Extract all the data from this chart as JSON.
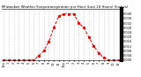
{
  "title": "Milwaukee Weather Evapotranspiration per Hour (Last 24 Hours) (Inches)",
  "hours": [
    0,
    1,
    2,
    3,
    4,
    5,
    6,
    7,
    8,
    9,
    10,
    11,
    12,
    13,
    14,
    15,
    16,
    17,
    18,
    19,
    20,
    21,
    22,
    23
  ],
  "values": [
    0,
    0,
    0,
    0,
    0,
    0,
    0,
    0.004,
    0.008,
    0.016,
    0.028,
    0.038,
    0.04,
    0.04,
    0.04,
    0.032,
    0.028,
    0.02,
    0.012,
    0.006,
    0.002,
    0,
    0,
    0
  ],
  "line_color": "#ff0000",
  "line_style": "--",
  "line_width": 0.7,
  "marker": "s",
  "marker_size": 1.2,
  "grid_color": "#aaaaaa",
  "grid_style": ":",
  "ylim": [
    0,
    0.044
  ],
  "xlim": [
    -0.5,
    23.5
  ],
  "yticks": [
    0,
    0.004,
    0.008,
    0.012,
    0.016,
    0.02,
    0.024,
    0.028,
    0.032,
    0.036,
    0.04
  ],
  "xtick_labels": [
    "12a",
    "1",
    "2",
    "3",
    "4",
    "5",
    "6",
    "7",
    "8",
    "9",
    "10",
    "11",
    "12p",
    "1",
    "2",
    "3",
    "4",
    "5",
    "6",
    "7",
    "8",
    "9",
    "10",
    "11"
  ],
  "bg_color": "#ffffff",
  "title_fontsize": 2.8,
  "tick_fontsize": 2.5,
  "right_border_color": "#000000"
}
